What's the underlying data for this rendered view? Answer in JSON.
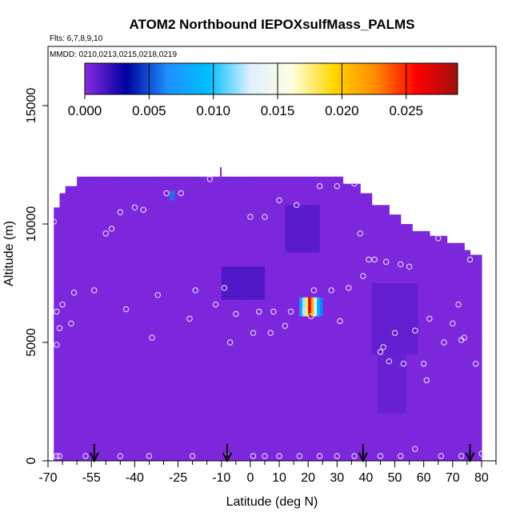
{
  "chart_data": {
    "type": "heatmap",
    "title": "ATOM2 Northbound IEPOXsulfMass_PALMS",
    "notes": {
      "flights": "Flts: 6,7,8,9,10",
      "dates": "MMDD: 0210,0213,0215,0218,0219"
    },
    "xlabel": "Latitude (deg N)",
    "ylabel": "Altitude (m)",
    "xlim": [
      -70,
      85
    ],
    "ylim": [
      0,
      17500
    ],
    "x_ticks": [
      -70,
      -55,
      -40,
      -25,
      -10,
      0,
      10,
      20,
      30,
      40,
      50,
      60,
      70,
      80
    ],
    "x_tick_labels": [
      "-70",
      "-55",
      "-40",
      "-25",
      "-10",
      "0",
      "10",
      "20",
      "30",
      "40",
      "50",
      "60",
      "70",
      "80"
    ],
    "x_minor_ticks": [
      -65,
      -60,
      -50,
      -45,
      -35,
      -30,
      -20,
      -15,
      -5,
      5,
      15,
      25,
      35,
      45,
      55,
      65,
      75,
      85
    ],
    "y_ticks": [
      0,
      5000,
      10000,
      15000
    ],
    "y_tick_labels": [
      "0",
      "5000",
      "10000",
      "15000"
    ],
    "colorbar": {
      "min": 0,
      "max": 0.029,
      "ticks": [
        0.0,
        0.005,
        0.01,
        0.015,
        0.02,
        0.025
      ],
      "tick_labels": [
        "0.000",
        "0.005",
        "0.010",
        "0.015",
        "0.020",
        "0.025"
      ],
      "stops": [
        "#8a2be2",
        "#0000a0",
        "#1e90ff",
        "#00bfff",
        "#e0f0ff",
        "#ffffe0",
        "#ffd700",
        "#ff8c00",
        "#ff0000",
        "#a01010"
      ]
    },
    "background_value": 0.0003,
    "field_extent": {
      "lat_min": -68,
      "lat_max": 80,
      "alt_min": 0,
      "alt_max": 12000
    },
    "anomalies": [
      {
        "lat": [
          -28,
          -26
        ],
        "alt": [
          11000,
          11400
        ],
        "value": 0.006
      },
      {
        "lat": [
          -10,
          5
        ],
        "alt": [
          6800,
          8200
        ],
        "value": 0.0017
      },
      {
        "lat": [
          12,
          24
        ],
        "alt": [
          8800,
          10800
        ],
        "value": 0.0014
      },
      {
        "lat": [
          42,
          58
        ],
        "alt": [
          4500,
          7500
        ],
        "value": 0.0011
      },
      {
        "lat": [
          44,
          54
        ],
        "alt": [
          2000,
          4500
        ],
        "value": 0.0009
      }
    ],
    "hotspot": {
      "lat": [
        17,
        25
      ],
      "alt": [
        6100,
        6900
      ],
      "columns": [
        0.008,
        0.012,
        0.018,
        0.027,
        0.021,
        0.013,
        0.009,
        0.006
      ]
    },
    "observations": [
      {
        "lat": -68,
        "alt": 10100
      },
      {
        "lat": -67,
        "alt": 6300
      },
      {
        "lat": -66,
        "alt": 5600
      },
      {
        "lat": -67,
        "alt": 4900
      },
      {
        "lat": -65,
        "alt": 6600
      },
      {
        "lat": -62,
        "alt": 5800
      },
      {
        "lat": -61,
        "alt": 7100
      },
      {
        "lat": -54,
        "alt": 7200
      },
      {
        "lat": -50,
        "alt": 9600
      },
      {
        "lat": -48,
        "alt": 9800
      },
      {
        "lat": -45,
        "alt": 10500
      },
      {
        "lat": -43,
        "alt": 6400
      },
      {
        "lat": -40,
        "alt": 10700
      },
      {
        "lat": -37,
        "alt": 10600
      },
      {
        "lat": -34,
        "alt": 5200
      },
      {
        "lat": -32,
        "alt": 7000
      },
      {
        "lat": -29,
        "alt": 11300
      },
      {
        "lat": -24,
        "alt": 11300
      },
      {
        "lat": -21,
        "alt": 6000
      },
      {
        "lat": -19,
        "alt": 7200
      },
      {
        "lat": -14,
        "alt": 11900
      },
      {
        "lat": -12,
        "alt": 6600
      },
      {
        "lat": -9,
        "alt": 7300
      },
      {
        "lat": -7,
        "alt": 5000
      },
      {
        "lat": -5,
        "alt": 6200
      },
      {
        "lat": 0,
        "alt": 10300
      },
      {
        "lat": 1,
        "alt": 5400
      },
      {
        "lat": 3,
        "alt": 6300
      },
      {
        "lat": 5,
        "alt": 10300
      },
      {
        "lat": 7,
        "alt": 5400
      },
      {
        "lat": 8,
        "alt": 6300
      },
      {
        "lat": 10,
        "alt": 11000
      },
      {
        "lat": 12,
        "alt": 5700
      },
      {
        "lat": 14,
        "alt": 6300
      },
      {
        "lat": 16,
        "alt": 10800
      },
      {
        "lat": 19,
        "alt": 6300
      },
      {
        "lat": 21,
        "alt": 6100
      },
      {
        "lat": 22,
        "alt": 7200
      },
      {
        "lat": 24,
        "alt": 11600
      },
      {
        "lat": 28,
        "alt": 7200
      },
      {
        "lat": 30,
        "alt": 11600
      },
      {
        "lat": 31,
        "alt": 5900
      },
      {
        "lat": 34,
        "alt": 7300
      },
      {
        "lat": 36,
        "alt": 11700
      },
      {
        "lat": 38,
        "alt": 9600
      },
      {
        "lat": 39,
        "alt": 7800
      },
      {
        "lat": 41,
        "alt": 8500
      },
      {
        "lat": 43,
        "alt": 8500
      },
      {
        "lat": 45,
        "alt": 4600
      },
      {
        "lat": 46,
        "alt": 4800
      },
      {
        "lat": 47,
        "alt": 8400
      },
      {
        "lat": 48,
        "alt": 4200
      },
      {
        "lat": 50,
        "alt": 5400
      },
      {
        "lat": 52,
        "alt": 8300
      },
      {
        "lat": 53,
        "alt": 4100
      },
      {
        "lat": 55,
        "alt": 8200
      },
      {
        "lat": 57,
        "alt": 5500
      },
      {
        "lat": 60,
        "alt": 4100
      },
      {
        "lat": 61,
        "alt": 3400
      },
      {
        "lat": 62,
        "alt": 6000
      },
      {
        "lat": 65,
        "alt": 9400
      },
      {
        "lat": 67,
        "alt": 5000
      },
      {
        "lat": 70,
        "alt": 5800
      },
      {
        "lat": 72,
        "alt": 6600
      },
      {
        "lat": 73,
        "alt": 5100
      },
      {
        "lat": 74,
        "alt": 5200
      },
      {
        "lat": 76,
        "alt": 8500
      },
      {
        "lat": 78,
        "alt": 4100
      },
      {
        "lat": -67,
        "alt": 200
      },
      {
        "lat": -66,
        "alt": 200
      },
      {
        "lat": -57,
        "alt": 200
      },
      {
        "lat": -45,
        "alt": 200
      },
      {
        "lat": -35,
        "alt": 200
      },
      {
        "lat": -20,
        "alt": 200
      },
      {
        "lat": -8,
        "alt": 200
      },
      {
        "lat": 1,
        "alt": 200
      },
      {
        "lat": 5,
        "alt": 200
      },
      {
        "lat": 10,
        "alt": 200
      },
      {
        "lat": 17,
        "alt": 200
      },
      {
        "lat": 24,
        "alt": 200
      },
      {
        "lat": 30,
        "alt": 200
      },
      {
        "lat": 36,
        "alt": 200
      },
      {
        "lat": 45,
        "alt": 200
      },
      {
        "lat": 52,
        "alt": 200
      },
      {
        "lat": 57,
        "alt": 500
      },
      {
        "lat": 66,
        "alt": 200
      },
      {
        "lat": 73,
        "alt": 200
      },
      {
        "lat": 80,
        "alt": 300
      }
    ],
    "arrows": [
      -54,
      -8,
      39,
      76
    ]
  }
}
